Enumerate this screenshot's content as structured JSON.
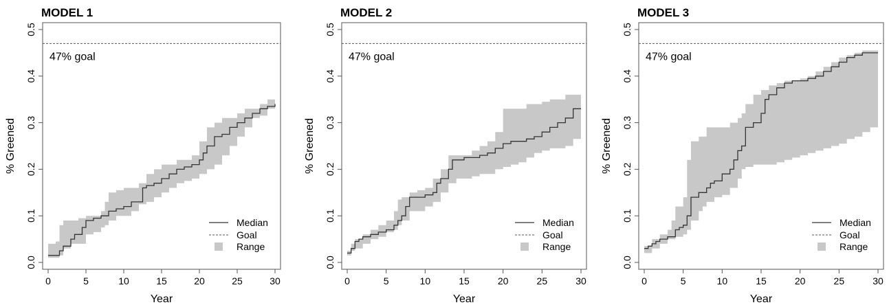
{
  "chart_data": [
    {
      "type": "line",
      "title": "MODEL 1",
      "xlabel": "Year",
      "ylabel": "% Greened",
      "xlim": [
        0,
        30
      ],
      "ylim": [
        0,
        0.5
      ],
      "xticks": [
        "0",
        "5",
        "10",
        "15",
        "20",
        "25",
        "30"
      ],
      "yticks": [
        "0.0",
        "0.1",
        "0.2",
        "0.3",
        "0.4",
        "0.5"
      ],
      "goal": {
        "value": 0.47,
        "label": "47% goal"
      },
      "legend": {
        "position": "bottom-right",
        "entries": [
          "Median",
          "Goal",
          "Range"
        ]
      },
      "colors": {
        "band": "#c8c8c8",
        "line": "#333333",
        "goal": "#555555",
        "axis": "#555555"
      },
      "series": [
        {
          "x": [
            0,
            1,
            1.5,
            2,
            3,
            3.5,
            4,
            4.5,
            5,
            6,
            7,
            7.5,
            8,
            9,
            10,
            11,
            12,
            12.5,
            13,
            14,
            15,
            16,
            17,
            18,
            19,
            20,
            20.5,
            21,
            22,
            23,
            24,
            25,
            26,
            27,
            28,
            29,
            30
          ],
          "values": [
            0.015,
            0.015,
            0.025,
            0.035,
            0.05,
            0.06,
            0.06,
            0.075,
            0.09,
            0.095,
            0.1,
            0.1,
            0.11,
            0.115,
            0.12,
            0.13,
            0.13,
            0.16,
            0.165,
            0.17,
            0.18,
            0.19,
            0.2,
            0.205,
            0.21,
            0.22,
            0.235,
            0.25,
            0.27,
            0.275,
            0.29,
            0.3,
            0.31,
            0.32,
            0.33,
            0.335,
            0.34
          ]
        }
      ],
      "range": {
        "x": [
          0,
          1,
          1.5,
          2,
          3,
          4,
          5,
          6,
          7,
          7.5,
          8,
          9,
          10,
          11,
          12,
          13,
          14,
          15,
          16,
          17,
          18,
          19,
          20,
          21,
          22,
          23,
          24,
          25,
          26,
          27,
          28,
          29,
          30
        ],
        "upper": [
          0.04,
          0.045,
          0.08,
          0.09,
          0.09,
          0.095,
          0.1,
          0.1,
          0.11,
          0.13,
          0.15,
          0.155,
          0.16,
          0.16,
          0.17,
          0.19,
          0.2,
          0.21,
          0.21,
          0.22,
          0.22,
          0.23,
          0.26,
          0.29,
          0.3,
          0.31,
          0.31,
          0.32,
          0.33,
          0.33,
          0.34,
          0.35,
          0.355
        ],
        "lower": [
          0.01,
          0.01,
          0.015,
          0.03,
          0.04,
          0.04,
          0.06,
          0.065,
          0.075,
          0.08,
          0.09,
          0.1,
          0.1,
          0.11,
          0.125,
          0.13,
          0.14,
          0.15,
          0.16,
          0.17,
          0.175,
          0.18,
          0.19,
          0.2,
          0.21,
          0.23,
          0.25,
          0.27,
          0.29,
          0.31,
          0.315,
          0.33,
          0.33
        ]
      }
    },
    {
      "type": "line",
      "title": "MODEL 2",
      "xlabel": "Year",
      "ylabel": "% Greened",
      "xlim": [
        0,
        30
      ],
      "ylim": [
        0,
        0.5
      ],
      "xticks": [
        "0",
        "5",
        "10",
        "15",
        "20",
        "25",
        "30"
      ],
      "yticks": [
        "0.0",
        "0.1",
        "0.2",
        "0.3",
        "0.4",
        "0.5"
      ],
      "goal": {
        "value": 0.47,
        "label": "47% goal"
      },
      "legend": {
        "position": "bottom-right",
        "entries": [
          "Median",
          "Goal",
          "Range"
        ]
      },
      "colors": {
        "band": "#c8c8c8",
        "line": "#333333",
        "goal": "#555555",
        "axis": "#555555"
      },
      "series": [
        {
          "x": [
            0,
            0.5,
            1,
            1.5,
            2,
            3,
            4,
            5,
            6,
            6.5,
            7,
            7.5,
            8,
            9,
            10,
            11,
            11.5,
            12,
            13,
            13.5,
            14,
            15,
            16,
            17,
            18,
            19,
            20,
            21,
            22,
            23,
            24,
            25,
            26,
            27,
            28,
            29,
            30
          ],
          "values": [
            0.02,
            0.03,
            0.045,
            0.05,
            0.055,
            0.06,
            0.065,
            0.07,
            0.08,
            0.09,
            0.1,
            0.12,
            0.14,
            0.14,
            0.145,
            0.15,
            0.17,
            0.18,
            0.2,
            0.22,
            0.22,
            0.225,
            0.225,
            0.23,
            0.235,
            0.245,
            0.255,
            0.26,
            0.26,
            0.265,
            0.27,
            0.28,
            0.29,
            0.3,
            0.31,
            0.33,
            0.33
          ]
        }
      ],
      "range": {
        "x": [
          0,
          0.5,
          1,
          2,
          3,
          4,
          5,
          6,
          6.5,
          7,
          8,
          9,
          10,
          11,
          12,
          13,
          14,
          15,
          16,
          17,
          18,
          19,
          20,
          21,
          22,
          23,
          24,
          25,
          26,
          27,
          28,
          29,
          30
        ],
        "upper": [
          0.025,
          0.04,
          0.05,
          0.06,
          0.07,
          0.08,
          0.09,
          0.11,
          0.135,
          0.14,
          0.15,
          0.155,
          0.16,
          0.18,
          0.2,
          0.23,
          0.23,
          0.23,
          0.24,
          0.25,
          0.26,
          0.28,
          0.33,
          0.33,
          0.33,
          0.34,
          0.34,
          0.345,
          0.35,
          0.35,
          0.36,
          0.36,
          0.36
        ],
        "lower": [
          0.015,
          0.025,
          0.03,
          0.04,
          0.05,
          0.055,
          0.065,
          0.07,
          0.08,
          0.09,
          0.11,
          0.11,
          0.12,
          0.13,
          0.15,
          0.17,
          0.18,
          0.18,
          0.185,
          0.19,
          0.19,
          0.2,
          0.205,
          0.21,
          0.215,
          0.225,
          0.235,
          0.24,
          0.245,
          0.245,
          0.25,
          0.265,
          0.265
        ]
      }
    },
    {
      "type": "line",
      "title": "MODEL 3",
      "xlabel": "Year",
      "ylabel": "% Greened",
      "xlim": [
        0,
        30
      ],
      "ylim": [
        0,
        0.5
      ],
      "xticks": [
        "0",
        "5",
        "10",
        "15",
        "20",
        "25",
        "30"
      ],
      "yticks": [
        "0.0",
        "0.1",
        "0.2",
        "0.3",
        "0.4",
        "0.5"
      ],
      "goal": {
        "value": 0.47,
        "label": "47% goal"
      },
      "legend": {
        "position": "bottom-right",
        "entries": [
          "Median",
          "Goal",
          "Range"
        ]
      },
      "colors": {
        "band": "#c8c8c8",
        "line": "#333333",
        "goal": "#555555",
        "axis": "#555555"
      },
      "series": [
        {
          "x": [
            0,
            0.5,
            1,
            1.5,
            2,
            3,
            4,
            4.5,
            5,
            5.5,
            6,
            7,
            8,
            8.5,
            9,
            10,
            11,
            11.5,
            12,
            12.5,
            13,
            14,
            15,
            15.5,
            16,
            17,
            18,
            19,
            20,
            21,
            22,
            23,
            24,
            25,
            26,
            27,
            28,
            29,
            30
          ],
          "values": [
            0.03,
            0.035,
            0.04,
            0.045,
            0.05,
            0.055,
            0.07,
            0.075,
            0.08,
            0.1,
            0.14,
            0.15,
            0.16,
            0.17,
            0.175,
            0.19,
            0.2,
            0.22,
            0.24,
            0.25,
            0.29,
            0.3,
            0.32,
            0.35,
            0.36,
            0.375,
            0.385,
            0.39,
            0.39,
            0.395,
            0.4,
            0.41,
            0.42,
            0.43,
            0.44,
            0.445,
            0.45,
            0.45,
            0.45
          ]
        }
      ],
      "range": {
        "x": [
          0,
          1,
          2,
          3,
          3.5,
          4,
          5,
          5.5,
          6,
          7,
          7.5,
          8,
          9,
          10,
          11,
          12,
          12.5,
          13,
          14,
          15,
          16,
          17,
          18,
          19,
          20,
          21,
          22,
          23,
          24,
          25,
          26,
          27,
          28,
          29,
          30
        ],
        "upper": [
          0.035,
          0.05,
          0.06,
          0.07,
          0.09,
          0.12,
          0.14,
          0.22,
          0.26,
          0.27,
          0.27,
          0.29,
          0.29,
          0.29,
          0.3,
          0.31,
          0.32,
          0.34,
          0.36,
          0.37,
          0.38,
          0.385,
          0.39,
          0.39,
          0.395,
          0.4,
          0.41,
          0.42,
          0.43,
          0.44,
          0.445,
          0.45,
          0.455,
          0.455,
          0.455
        ],
        "lower": [
          0.02,
          0.03,
          0.04,
          0.05,
          0.05,
          0.055,
          0.06,
          0.07,
          0.09,
          0.11,
          0.12,
          0.13,
          0.14,
          0.145,
          0.16,
          0.18,
          0.2,
          0.205,
          0.21,
          0.21,
          0.21,
          0.215,
          0.22,
          0.225,
          0.23,
          0.235,
          0.24,
          0.245,
          0.25,
          0.255,
          0.265,
          0.27,
          0.28,
          0.29,
          0.29
        ]
      }
    }
  ]
}
